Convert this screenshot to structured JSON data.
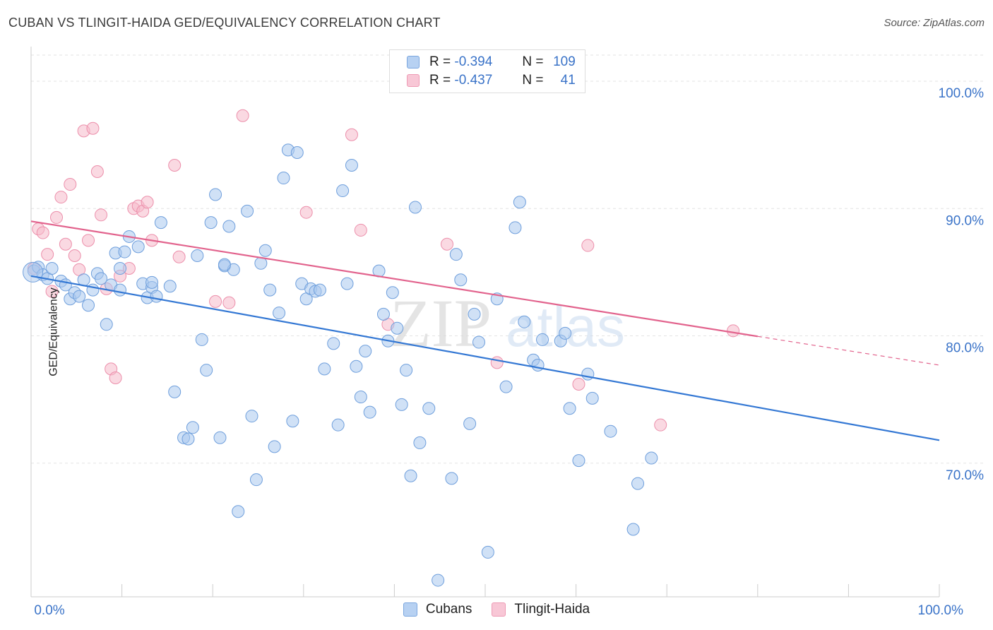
{
  "title": "CUBAN VS TLINGIT-HAIDA GED/EQUIVALENCY CORRELATION CHART",
  "source": "Source: ZipAtlas.com",
  "watermark": {
    "part1": "ZIP",
    "part2": "atlas"
  },
  "legend_box": {
    "rows": [
      {
        "r_label": "R =",
        "r_value": "-0.394",
        "n_label": "N =",
        "n_value": "109"
      },
      {
        "r_label": "R =",
        "r_value": "-0.437",
        "n_label": "N =",
        "n_value": "41"
      }
    ]
  },
  "colors": {
    "blue_fill": "#a9c8ee",
    "blue_stroke": "#6f9fdc",
    "blue_line": "#3478d4",
    "pink_fill": "#f6b9cb",
    "pink_stroke": "#ec8fab",
    "pink_line": "#e2638d",
    "axis_text": "#3a73c8",
    "grid": "#e3e3e3"
  },
  "chart_data": {
    "type": "scatter",
    "title": "CUBAN VS TLINGIT-HAIDA GED/EQUIVALENCY CORRELATION CHART",
    "xlabel": "",
    "ylabel": "GED/Equivalency",
    "xlim": [
      0,
      100
    ],
    "ylim": [
      59.5,
      102.5
    ],
    "x_tick_labels": [
      {
        "value": 0,
        "label": "0.0%"
      },
      {
        "value": 100,
        "label": "100.0%"
      }
    ],
    "y_tick_labels": [
      {
        "value": 70,
        "label": "70.0%"
      },
      {
        "value": 80,
        "label": "80.0%"
      },
      {
        "value": 90,
        "label": "90.0%"
      },
      {
        "value": 100,
        "label": "100.0%"
      }
    ],
    "series": [
      {
        "name": "Cubans",
        "r": -0.394,
        "n": 109,
        "trend": {
          "x": [
            0,
            100
          ],
          "y": [
            84.7,
            71.8
          ],
          "dashed_from": null
        },
        "points": [
          [
            0.3,
            85.1
          ],
          [
            0.8,
            85.4
          ],
          [
            1.3,
            84.8
          ],
          [
            1.8,
            84.5
          ],
          [
            2.3,
            85.3
          ],
          [
            3.3,
            84.3
          ],
          [
            3.8,
            84.0
          ],
          [
            4.3,
            82.9
          ],
          [
            4.8,
            83.4
          ],
          [
            5.3,
            83.1
          ],
          [
            5.8,
            84.4
          ],
          [
            6.3,
            82.4
          ],
          [
            6.8,
            83.6
          ],
          [
            7.3,
            84.9
          ],
          [
            7.7,
            84.5
          ],
          [
            8.3,
            80.9
          ],
          [
            8.8,
            84.0
          ],
          [
            9.3,
            86.5
          ],
          [
            9.8,
            85.3
          ],
          [
            10.3,
            86.6
          ],
          [
            10.8,
            87.8
          ],
          [
            11.8,
            87.0
          ],
          [
            12.3,
            84.1
          ],
          [
            12.8,
            83.0
          ],
          [
            13.3,
            83.8
          ],
          [
            13.8,
            83.1
          ],
          [
            14.3,
            88.9
          ],
          [
            15.3,
            83.9
          ],
          [
            15.8,
            75.6
          ],
          [
            16.8,
            72.0
          ],
          [
            17.3,
            71.9
          ],
          [
            17.8,
            72.8
          ],
          [
            18.3,
            86.3
          ],
          [
            18.8,
            79.7
          ],
          [
            19.3,
            77.3
          ],
          [
            19.8,
            88.9
          ],
          [
            20.3,
            91.1
          ],
          [
            20.8,
            72.0
          ],
          [
            21.3,
            85.5
          ],
          [
            21.8,
            88.6
          ],
          [
            22.3,
            85.2
          ],
          [
            22.8,
            66.2
          ],
          [
            23.8,
            89.8
          ],
          [
            24.3,
            73.7
          ],
          [
            24.8,
            68.7
          ],
          [
            25.3,
            85.7
          ],
          [
            25.8,
            86.7
          ],
          [
            26.3,
            83.6
          ],
          [
            26.8,
            71.3
          ],
          [
            27.3,
            81.8
          ],
          [
            27.8,
            92.4
          ],
          [
            28.3,
            94.6
          ],
          [
            28.8,
            73.3
          ],
          [
            29.3,
            94.4
          ],
          [
            29.8,
            84.1
          ],
          [
            30.3,
            82.9
          ],
          [
            30.8,
            83.7
          ],
          [
            31.3,
            83.5
          ],
          [
            31.8,
            83.6
          ],
          [
            32.3,
            77.4
          ],
          [
            33.3,
            79.4
          ],
          [
            33.8,
            73.0
          ],
          [
            34.3,
            91.4
          ],
          [
            34.8,
            84.1
          ],
          [
            35.3,
            93.4
          ],
          [
            35.8,
            77.6
          ],
          [
            36.3,
            75.2
          ],
          [
            36.8,
            78.8
          ],
          [
            37.3,
            74.0
          ],
          [
            38.3,
            85.1
          ],
          [
            38.8,
            81.7
          ],
          [
            39.3,
            79.6
          ],
          [
            39.8,
            83.4
          ],
          [
            40.3,
            80.6
          ],
          [
            40.8,
            74.6
          ],
          [
            41.3,
            77.3
          ],
          [
            41.8,
            69.0
          ],
          [
            42.3,
            90.1
          ],
          [
            42.8,
            71.6
          ],
          [
            43.8,
            74.3
          ],
          [
            44.8,
            60.8
          ],
          [
            46.3,
            68.8
          ],
          [
            46.8,
            86.4
          ],
          [
            47.3,
            84.4
          ],
          [
            48.3,
            73.1
          ],
          [
            48.8,
            81.7
          ],
          [
            49.3,
            79.5
          ],
          [
            50.3,
            63.0
          ],
          [
            51.3,
            82.9
          ],
          [
            52.3,
            76.0
          ],
          [
            53.3,
            88.5
          ],
          [
            53.8,
            90.5
          ],
          [
            54.3,
            81.1
          ],
          [
            55.3,
            78.1
          ],
          [
            55.8,
            77.7
          ],
          [
            56.3,
            79.7
          ],
          [
            58.3,
            79.6
          ],
          [
            58.8,
            80.2
          ],
          [
            59.3,
            74.3
          ],
          [
            60.3,
            70.2
          ],
          [
            61.3,
            77.0
          ],
          [
            61.8,
            75.1
          ],
          [
            63.8,
            72.5
          ],
          [
            66.3,
            64.8
          ],
          [
            66.8,
            68.4
          ],
          [
            68.3,
            70.4
          ],
          [
            21.3,
            85.6
          ],
          [
            13.3,
            84.2
          ],
          [
            9.8,
            83.6
          ]
        ]
      },
      {
        "name": "Tlingit-Haida",
        "r": -0.437,
        "n": 41,
        "trend": {
          "x": [
            0,
            100
          ],
          "y": [
            89.0,
            77.7
          ],
          "dashed_from": 80
        },
        "points": [
          [
            0.3,
            85.3
          ],
          [
            0.8,
            88.4
          ],
          [
            1.3,
            88.1
          ],
          [
            1.8,
            86.4
          ],
          [
            2.3,
            83.5
          ],
          [
            2.8,
            89.3
          ],
          [
            3.3,
            90.9
          ],
          [
            3.8,
            87.2
          ],
          [
            4.3,
            91.9
          ],
          [
            4.8,
            86.3
          ],
          [
            5.3,
            85.2
          ],
          [
            5.8,
            96.1
          ],
          [
            6.3,
            87.5
          ],
          [
            6.8,
            96.3
          ],
          [
            7.3,
            92.9
          ],
          [
            7.7,
            89.5
          ],
          [
            8.3,
            83.7
          ],
          [
            8.8,
            77.4
          ],
          [
            9.3,
            76.7
          ],
          [
            9.8,
            84.7
          ],
          [
            10.8,
            85.3
          ],
          [
            11.3,
            90.0
          ],
          [
            11.8,
            90.2
          ],
          [
            12.3,
            89.8
          ],
          [
            12.8,
            90.5
          ],
          [
            13.3,
            87.5
          ],
          [
            15.8,
            93.4
          ],
          [
            16.3,
            86.2
          ],
          [
            20.3,
            82.7
          ],
          [
            21.8,
            82.6
          ],
          [
            23.3,
            97.3
          ],
          [
            30.3,
            89.7
          ],
          [
            35.3,
            95.8
          ],
          [
            36.3,
            88.3
          ],
          [
            39.3,
            80.9
          ],
          [
            45.8,
            87.2
          ],
          [
            51.3,
            77.9
          ],
          [
            60.3,
            76.2
          ],
          [
            61.3,
            87.1
          ],
          [
            69.3,
            73.0
          ],
          [
            77.3,
            80.4
          ]
        ]
      }
    ],
    "legend": "top-center"
  },
  "axes": {
    "ylabel": "GED/Equivalency",
    "x_left_label": "0.0%",
    "x_right_label": "100.0%"
  },
  "bottom_legend": [
    {
      "name": "Cubans"
    },
    {
      "name": "Tlingit-Haida"
    }
  ]
}
